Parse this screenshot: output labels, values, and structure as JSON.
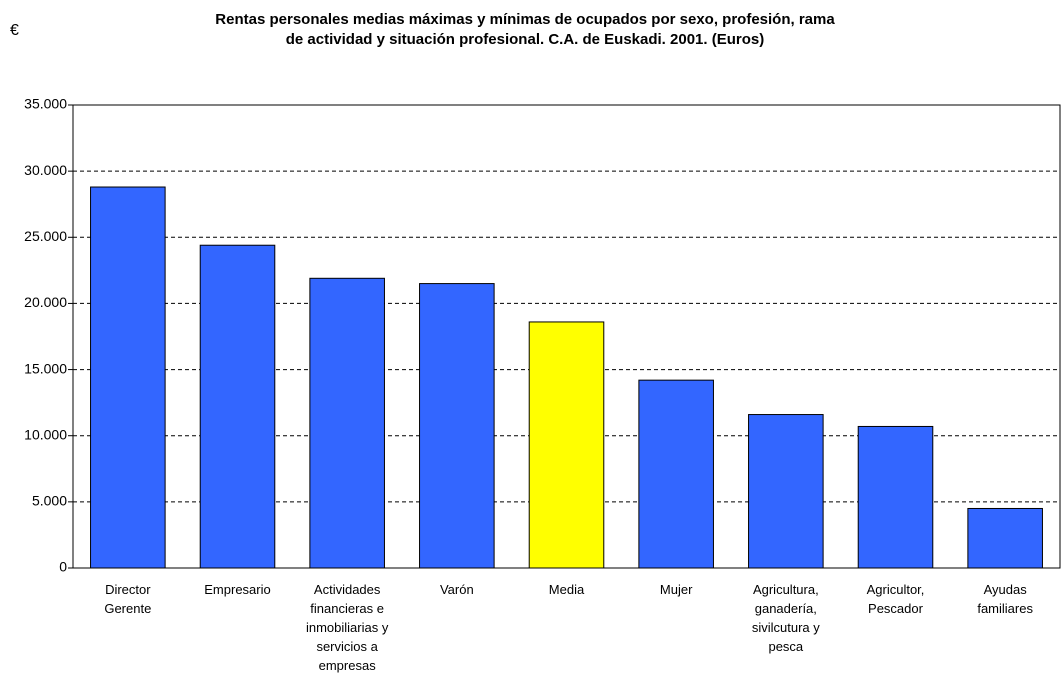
{
  "chart_data": {
    "type": "bar",
    "title": "Rentas personales medias máximas y mínimas de ocupados por sexo, profesión, rama\nde actividad y situación profesional. C.A. de Euskadi. 2001. (Euros)",
    "y_label": "€",
    "categories": [
      "Director\nGerente",
      "Empresario",
      "Actividades\nfinancieras e\ninmobiliarias y\nservicios a\nempresas",
      "Varón",
      "Media",
      "Mujer",
      "Agricultura,\nganadería,\nsivilcutura y\npesca",
      "Agricultor,\nPescador",
      "Ayudas\nfamiliares"
    ],
    "values": [
      28800,
      24400,
      21900,
      21500,
      18600,
      14200,
      11600,
      10700,
      4500
    ],
    "colors": [
      "#3366ff",
      "#3366ff",
      "#3366ff",
      "#3366ff",
      "#ffff00",
      "#3366ff",
      "#3366ff",
      "#3366ff",
      "#3366ff"
    ],
    "ylim": [
      0,
      35000
    ],
    "yticks": [
      0,
      {
        "value": 5000,
        "label": "5.000"
      },
      {
        "value": 10000,
        "label": "10.000"
      },
      {
        "value": 15000,
        "label": "15.000"
      },
      {
        "value": 20000,
        "label": "20.000"
      },
      {
        "value": 25000,
        "label": "25.000"
      },
      {
        "value": 30000,
        "label": "30.000"
      },
      {
        "value": 35000,
        "label": "35.000"
      }
    ],
    "grid": true
  }
}
